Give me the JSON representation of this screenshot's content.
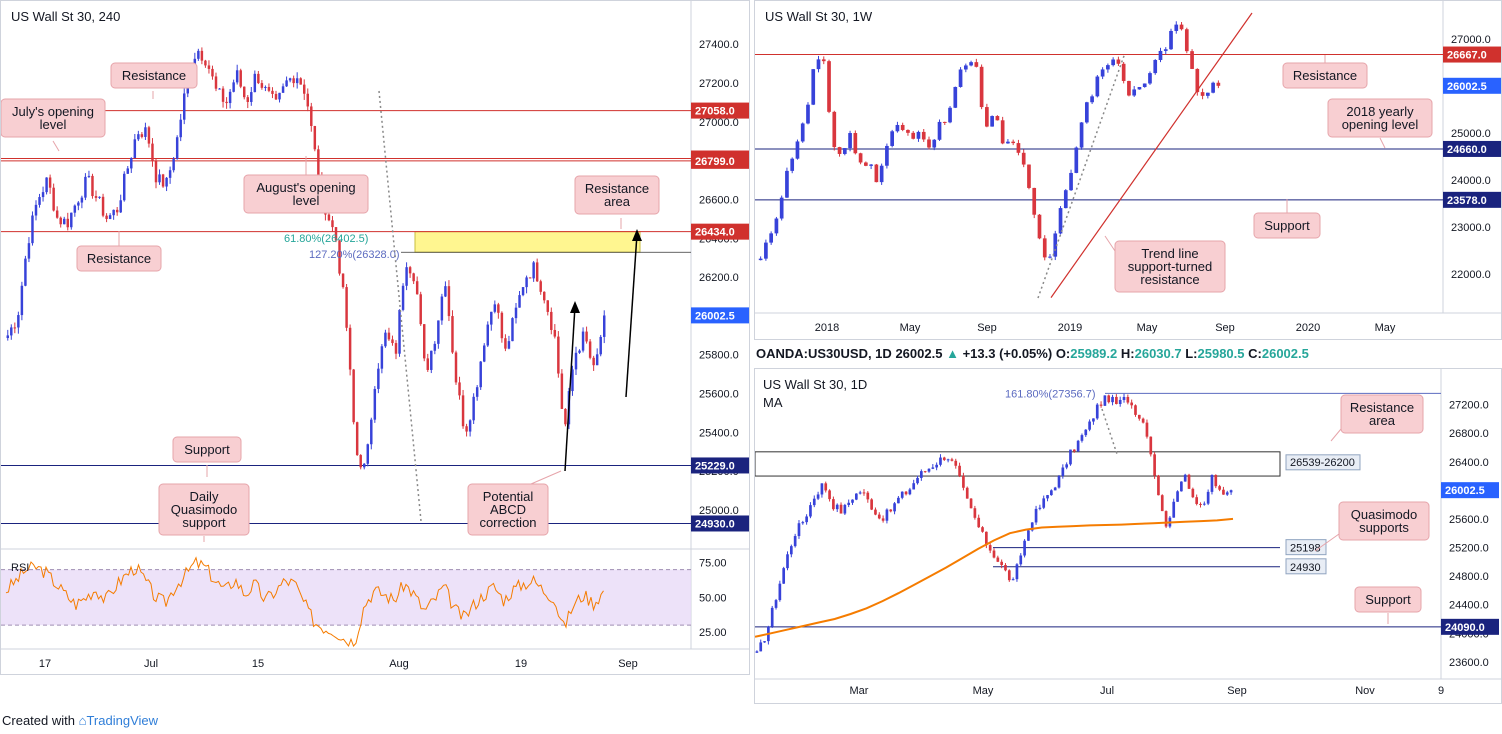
{
  "footer": {
    "created_with": "Created with",
    "brand": "TradingView"
  },
  "colors": {
    "up": "#3742d9",
    "down": "#d9363e",
    "resistance": "#d0312d",
    "support": "#1a237e",
    "ma": "#f57c00",
    "fib_green": "#26a69a",
    "fib_blue": "#5c6bc0",
    "zone": "#fff36b",
    "callout_bg": "#f8cfd2",
    "rsi": "#f57c00"
  },
  "ohlc_bar": {
    "symbol": "OANDA:US30USD, 1D",
    "last": "26002.5",
    "change": "+13.3 (+0.05%)",
    "o_label": "O:",
    "o": "25989.2",
    "h_label": "H:",
    "h": "26030.7",
    "l_label": "L:",
    "l": "25980.5",
    "c_label": "C:",
    "c": "26002.5"
  },
  "chart_data": [
    {
      "type": "candlestick",
      "title": "US Wall St 30, 240",
      "ylim": [
        24850,
        27530
      ],
      "y_ticks": [
        "27400.0",
        "27200.0",
        "27000.0",
        "26800.0",
        "26600.0",
        "26400.0",
        "26200.0",
        "26000.0",
        "25800.0",
        "25600.0",
        "25400.0",
        "25200.0",
        "25000.0"
      ],
      "x_ticks": [
        "17",
        "Jul",
        "15",
        "Aug",
        "19",
        "Sep"
      ],
      "price_path": [
        25900,
        26000,
        26380,
        26600,
        26700,
        26500,
        26480,
        26600,
        26700,
        26600,
        26500,
        26550,
        26750,
        26950,
        26950,
        26700,
        26680,
        26900,
        27200,
        27380,
        27320,
        27150,
        27100,
        27250,
        27100,
        27250,
        27150,
        27080,
        27200,
        27250,
        27150,
        26800,
        26550,
        26400,
        26000,
        25300,
        25200,
        25700,
        25900,
        25800,
        26300,
        26200,
        25700,
        25900,
        26200,
        25700,
        25400,
        25600,
        25900,
        26100,
        25800,
        26000,
        26200,
        26250,
        26100,
        25900,
        25400,
        25800,
        25900,
        25700,
        26002
      ],
      "horizontal_levels": [
        {
          "price": 27058.0,
          "label": "27058.0",
          "kind": "resistance"
        },
        {
          "price": 26811.0,
          "label": "26811.0",
          "kind": "resistance"
        },
        {
          "price": 26799.0,
          "label": "26799.0",
          "kind": "resistance"
        },
        {
          "price": 26434.0,
          "label": "26434.0",
          "kind": "resistance"
        },
        {
          "price": 25229.0,
          "label": "25229.0",
          "kind": "support"
        },
        {
          "price": 24930.0,
          "label": "24930.0",
          "kind": "support"
        }
      ],
      "current_price": "26002.5",
      "fib_labels": [
        {
          "text": "61.80%(26402.5)",
          "price": 26402.5,
          "color": "green"
        },
        {
          "text": "127.20%(26328.0)",
          "price": 26328.0,
          "color": "blue"
        }
      ],
      "zone": {
        "top": 26434.0,
        "bottom": 26328.0
      },
      "callouts": [
        {
          "id": "resistance-top",
          "text": [
            "Resistance"
          ]
        },
        {
          "id": "julys-opening",
          "text": [
            "July's opening",
            "level"
          ]
        },
        {
          "id": "august-opening",
          "text": [
            "August's opening",
            "level"
          ]
        },
        {
          "id": "resistance-area",
          "text": [
            "Resistance",
            "area"
          ]
        },
        {
          "id": "resistance-low",
          "text": [
            "Resistance"
          ]
        },
        {
          "id": "support",
          "text": [
            "Support"
          ]
        },
        {
          "id": "daily-qm",
          "text": [
            "Daily",
            "Quasimodo",
            "support"
          ]
        },
        {
          "id": "abcd",
          "text": [
            "Potential",
            "ABCD",
            "correction"
          ]
        }
      ],
      "rsi": {
        "label": "RSI",
        "ylim": [
          15,
          82
        ],
        "ticks": [
          "75.00",
          "50.00",
          "25.00"
        ],
        "bands": [
          70,
          30
        ],
        "values": [
          55,
          62,
          70,
          72,
          68,
          60,
          52,
          45,
          50,
          56,
          48,
          58,
          66,
          72,
          62,
          50,
          46,
          58,
          66,
          75,
          72,
          62,
          55,
          63,
          52,
          60,
          48,
          54,
          62,
          60,
          45,
          32,
          28,
          26,
          20,
          18,
          45,
          55,
          52,
          48,
          60,
          52,
          40,
          48,
          58,
          42,
          35,
          45,
          52,
          58,
          48,
          56,
          60,
          62,
          55,
          50,
          28,
          45,
          52,
          46,
          54
        ]
      }
    },
    {
      "type": "candlestick",
      "title": "US Wall St 30, 1W",
      "ylim": [
        21300,
        27550
      ],
      "y_ticks": [
        "27000.0",
        "26000.0",
        "25000.0",
        "24000.0",
        "23000.0",
        "22000.0"
      ],
      "x_ticks": [
        "2018",
        "May",
        "Sep",
        "2019",
        "May",
        "Sep",
        "2020",
        "May"
      ],
      "price_path": [
        22300,
        22800,
        23400,
        24200,
        24800,
        25300,
        26500,
        26500,
        24800,
        24500,
        25000,
        24300,
        24400,
        24000,
        24700,
        25200,
        25000,
        24900,
        25000,
        24700,
        25200,
        25400,
        26200,
        26500,
        26400,
        25000,
        25500,
        24700,
        24800,
        24500,
        23800,
        22800,
        22200,
        23000,
        23800,
        24500,
        25400,
        25900,
        26400,
        26500,
        26500,
        25800,
        25900,
        26200,
        26600,
        26700,
        27300,
        27200,
        26400,
        25600,
        26000,
        26002
      ],
      "horizontal_levels": [
        {
          "price": 26667.0,
          "label": "26667.0",
          "kind": "resistance"
        },
        {
          "price": 24660.0,
          "label": "24660.0",
          "kind": "support"
        },
        {
          "price": 23578.0,
          "label": "23578.0",
          "kind": "support"
        }
      ],
      "current_price": "26002.5",
      "callouts": [
        {
          "id": "resistance",
          "text": [
            "Resistance"
          ]
        },
        {
          "id": "yearly-opening",
          "text": [
            "2018 yearly",
            "opening level"
          ]
        },
        {
          "id": "support",
          "text": [
            "Support"
          ]
        },
        {
          "id": "trendline",
          "text": [
            "Trend line",
            "support-turned",
            "resistance"
          ]
        }
      ]
    },
    {
      "type": "candlestick",
      "title": "US Wall St 30, 1D",
      "subtitle": "MA",
      "ylim": [
        23500,
        27530
      ],
      "y_ticks": [
        "27200.0",
        "26800.0",
        "26400.0",
        "26000.0",
        "25600.0",
        "25200.0",
        "24800.0",
        "24400.0",
        "24000.0",
        "23600.0"
      ],
      "x_ticks": [
        "Mar",
        "May",
        "Jul",
        "Sep",
        "Nov",
        "9"
      ],
      "price_path": [
        23700,
        24000,
        24500,
        25000,
        25400,
        25600,
        25900,
        26100,
        25800,
        25700,
        25900,
        26000,
        25800,
        25600,
        25700,
        25900,
        26000,
        26200,
        26300,
        26400,
        26500,
        26300,
        25900,
        25600,
        25300,
        25100,
        24900,
        24700,
        25200,
        25600,
        25800,
        26000,
        26200,
        26500,
        26700,
        26900,
        27200,
        27300,
        27200,
        27300,
        27100,
        26900,
        26200,
        25500,
        25800,
        26300,
        25900,
        25700,
        26200,
        25900,
        26002
      ],
      "ma_path": [
        23950,
        24000,
        24050,
        24100,
        24150,
        24200,
        24270,
        24350,
        24450,
        24560,
        24680,
        24800,
        24920,
        25050,
        25180,
        25300,
        25400,
        25450,
        25480,
        25490,
        25500,
        25510,
        25515,
        25520,
        25530,
        25540,
        25550,
        25560,
        25570,
        25580,
        25600
      ],
      "zone": {
        "top": 26539,
        "bottom": 26200,
        "label": "26539-26200"
      },
      "fib_label": {
        "text": "161.80%(27356.7)",
        "price": 27356.7
      },
      "horizontal_levels": [
        {
          "price": 25198,
          "label": "25198",
          "kind": "support"
        },
        {
          "price": 24930,
          "label": "24930",
          "kind": "support"
        },
        {
          "price": 24090.0,
          "label": "24090.0",
          "kind": "support"
        }
      ],
      "current_price": "26002.5",
      "callouts": [
        {
          "id": "resistance-area",
          "text": [
            "Resistance",
            "area"
          ]
        },
        {
          "id": "qm-supports",
          "text": [
            "Quasimodo",
            "supports"
          ]
        },
        {
          "id": "support",
          "text": [
            "Support"
          ]
        }
      ]
    }
  ]
}
